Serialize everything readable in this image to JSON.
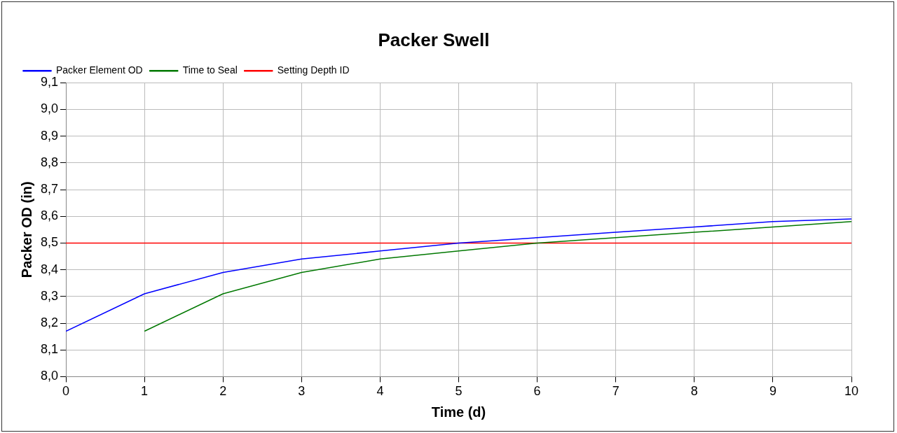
{
  "chart_data": {
    "type": "line",
    "title": "Packer Swell",
    "xlabel": "Time (d)",
    "ylabel": "Packer OD (in)",
    "x": [
      0,
      1,
      2,
      3,
      4,
      5,
      6,
      7,
      8,
      9,
      10
    ],
    "series": [
      {
        "name": "Packer Element OD",
        "color": "#0000ff",
        "values": [
          8.17,
          8.31,
          8.39,
          8.44,
          8.47,
          8.5,
          8.52,
          8.54,
          8.56,
          8.58,
          8.59
        ]
      },
      {
        "name": "Time to Seal",
        "color": "#007800",
        "values": [
          null,
          8.17,
          8.31,
          8.39,
          8.44,
          8.47,
          8.5,
          8.52,
          8.54,
          8.56,
          8.58
        ]
      },
      {
        "name": "Setting Depth ID",
        "color": "#ff0000",
        "x": [
          0,
          10
        ],
        "values": [
          8.5,
          8.5
        ]
      }
    ],
    "xlim": [
      0,
      10
    ],
    "xticks": [
      0,
      1,
      2,
      3,
      4,
      5,
      6,
      7,
      8,
      9,
      10
    ],
    "ylim": [
      8.0,
      9.1
    ],
    "yticks": [
      {
        "value": 8.0,
        "label": "8,0"
      },
      {
        "value": 8.1,
        "label": "8,1"
      },
      {
        "value": 8.2,
        "label": "8,2"
      },
      {
        "value": 8.3,
        "label": "8,3"
      },
      {
        "value": 8.4,
        "label": "8,4"
      },
      {
        "value": 8.5,
        "label": "8,5"
      },
      {
        "value": 8.6,
        "label": "8,6"
      },
      {
        "value": 8.7,
        "label": "8,7"
      },
      {
        "value": 8.8,
        "label": "8,8"
      },
      {
        "value": 8.9,
        "label": "8,9"
      },
      {
        "value": 9.0,
        "label": "9,0"
      },
      {
        "value": 9.1,
        "label": "9,1"
      }
    ],
    "grid": true,
    "legend": "top left",
    "marker": "none",
    "line_style": "solid"
  }
}
